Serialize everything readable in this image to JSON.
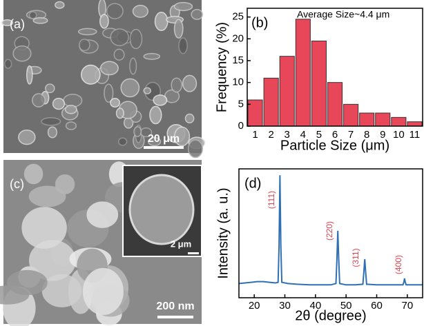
{
  "images": [
    {
      "label": "(a)",
      "scale_bar": "20 μm"
    },
    {
      "label": "(c)",
      "scale_bar": "200 nm",
      "inset_scale_bar": "2 μm"
    }
  ],
  "chart_data": [
    {
      "type": "bar",
      "panel": "(b)",
      "annotation": "Average Size~4.4 μm",
      "x_label": "Particle Size (μm)",
      "y_label": "Frequency (%)",
      "categories": [
        "1",
        "2",
        "3",
        "4",
        "5",
        "6",
        "7",
        "8",
        "9",
        "10",
        "11"
      ],
      "values": [
        6,
        11,
        16,
        24.5,
        19.5,
        10,
        5,
        3,
        3,
        2,
        1
      ],
      "color": "#e8475a",
      "ylim": [
        0,
        27
      ],
      "yticks": [
        0,
        5,
        10,
        15,
        20,
        25
      ]
    },
    {
      "type": "line",
      "panel": "(d)",
      "x_label": "2θ (degree)",
      "y_label": "Intensity (a. u.)",
      "x": [
        15,
        17,
        19,
        21,
        23,
        25,
        27,
        27.8,
        28.1,
        28.4,
        28.7,
        29,
        31,
        34,
        38,
        42,
        45,
        46.7,
        47,
        47.3,
        47.6,
        47.9,
        50,
        53,
        55.5,
        55.8,
        56.1,
        56.4,
        56.7,
        60,
        64,
        68.6,
        68.9,
        69.1,
        69.3,
        69.6,
        72,
        75
      ],
      "values": [
        11,
        11.5,
        12,
        12.5,
        12.5,
        12,
        11.5,
        12,
        40,
        95,
        40,
        12,
        11,
        10.5,
        10,
        10,
        10,
        11,
        30,
        52,
        30,
        11,
        10,
        10,
        10.5,
        20,
        30,
        20,
        10.5,
        10,
        10,
        10,
        12.5,
        15,
        12.5,
        10,
        10,
        10
      ],
      "color": "#2e6fb5",
      "xlim": [
        15,
        75
      ],
      "ylim": [
        0,
        100
      ],
      "xticks": [
        20,
        30,
        40,
        50,
        60,
        70
      ],
      "annotations": [
        "(111)",
        "(220)",
        "(311)",
        "(400)"
      ]
    }
  ]
}
